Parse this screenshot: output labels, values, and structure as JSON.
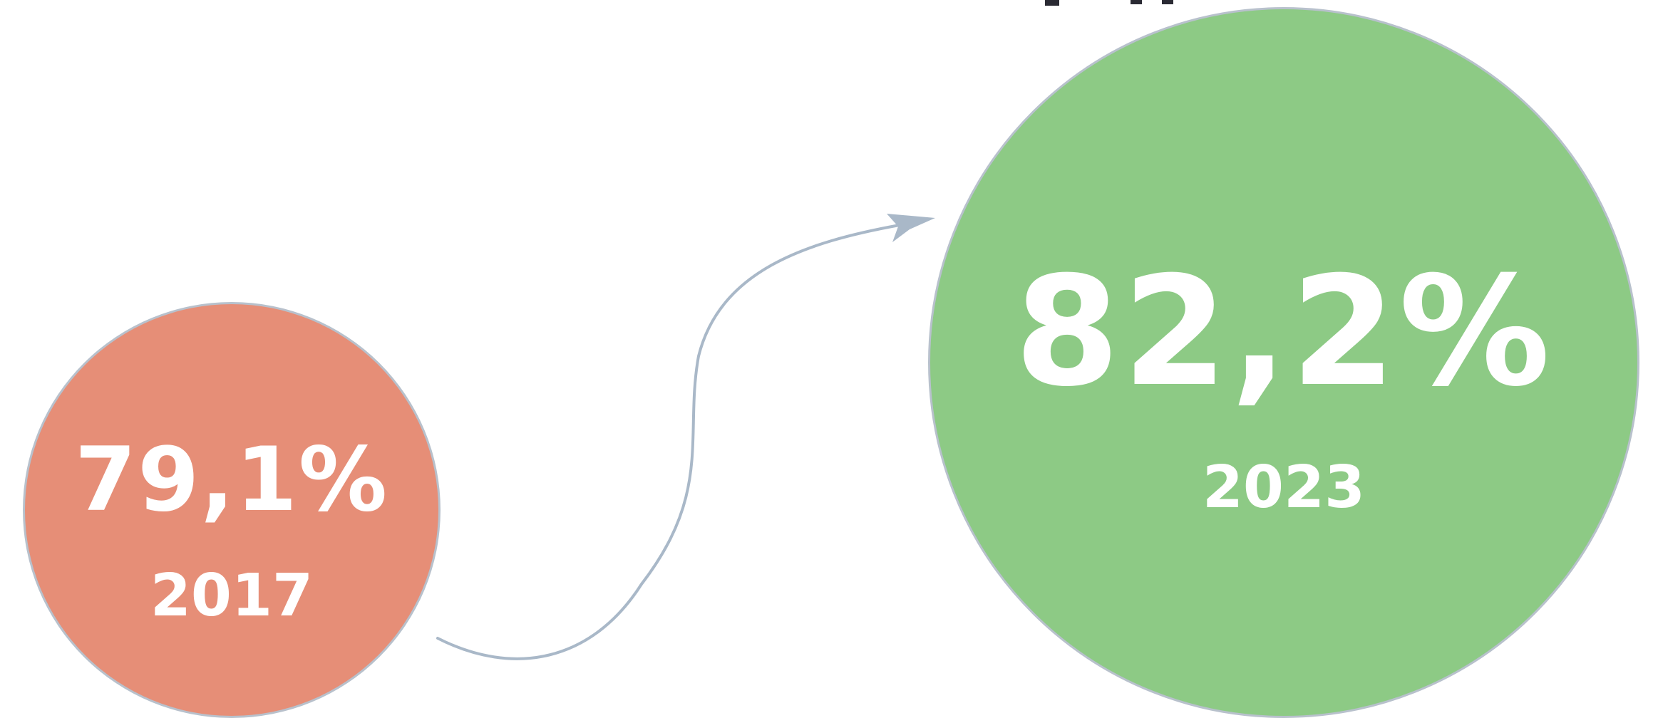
{
  "colors": {
    "circle_2017": "#e68e77",
    "circle_2023": "#8dca85",
    "outline": "#b8c1cc",
    "arrow": "#a9b8c8",
    "text": "#ffffff"
  },
  "items": [
    {
      "value": "79,1%",
      "year": "2017"
    },
    {
      "value": "82,2%",
      "year": "2023"
    }
  ],
  "arrow": {
    "icon": "curved-arrow-icon"
  }
}
